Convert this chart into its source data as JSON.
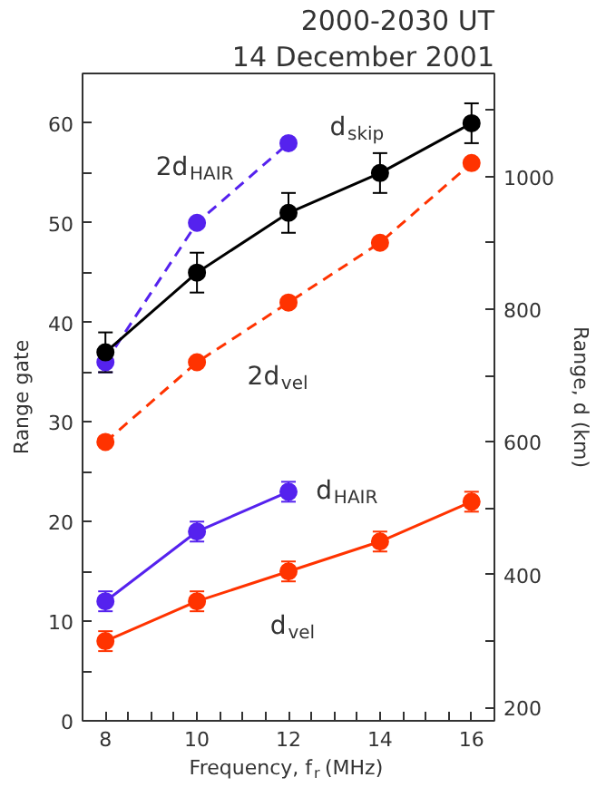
{
  "chart_data": {
    "type": "line",
    "title": "2000-2030 UT",
    "subtitle": "14 December 2001",
    "xlabel": "Frequency, f$_{r}$ (MHz)",
    "ylabel": "Range gate",
    "y2label": "Range, d (km)",
    "xlim": [
      7.5,
      16.5
    ],
    "xticks": [
      8,
      {
        "value": 8.5,
        "label": null
      },
      {
        "value": 9,
        "label": null
      },
      {
        "value": 9.5,
        "label": null
      },
      10,
      {
        "value": 10.5,
        "label": null
      },
      {
        "value": 11,
        "label": null
      },
      {
        "value": 11.5,
        "label": null
      },
      12,
      {
        "value": 12.5,
        "label": null
      },
      {
        "value": 13,
        "label": null
      },
      {
        "value": 13.5,
        "label": null
      },
      14,
      {
        "value": 14.5,
        "label": null
      },
      {
        "value": 15,
        "label": null
      },
      {
        "value": 15.5,
        "label": null
      },
      16
    ],
    "ylim": [
      0,
      65
    ],
    "yticks": [
      0,
      {
        "value": 5,
        "label": null
      },
      10,
      {
        "value": 15,
        "label": null
      },
      20,
      {
        "value": 25,
        "label": null
      },
      30,
      {
        "value": 35,
        "label": null
      },
      40,
      {
        "value": 45,
        "label": null
      },
      50,
      {
        "value": 55,
        "label": null
      },
      60
    ],
    "y2lim": [
      180,
      1155
    ],
    "y2ticks": [
      200,
      {
        "value": 300,
        "label": null
      },
      400,
      {
        "value": 500,
        "label": null
      },
      600,
      {
        "value": 700,
        "label": null
      },
      800,
      {
        "value": 900,
        "label": null
      },
      1000,
      {
        "value": 1100,
        "label": null
      }
    ],
    "marker": "circle",
    "grid": false,
    "series": [
      {
        "name": "2d$_{HAIR}$",
        "color": "#5522ee",
        "line_style": "dashed",
        "x": [
          8,
          10,
          12
        ],
        "values": [
          36,
          50,
          58
        ],
        "errors": [
          1,
          null,
          null
        ]
      },
      {
        "name": "d$_{skip}$",
        "color": "#000000",
        "line_style": "solid",
        "x": [
          8,
          10,
          12,
          14,
          16
        ],
        "values": [
          37,
          45,
          51,
          55,
          60
        ],
        "errors": [
          2,
          2,
          2,
          2,
          2
        ]
      },
      {
        "name": "2d$_{vel}$",
        "color": "#ff3300",
        "line_style": "dashed",
        "x": [
          8,
          10,
          12,
          14,
          16
        ],
        "values": [
          28,
          36,
          42,
          48,
          56
        ]
      },
      {
        "name": "d$_{HAIR}$",
        "color": "#5522ee",
        "line_style": "solid",
        "x": [
          8,
          10,
          12
        ],
        "values": [
          12,
          19,
          23
        ],
        "errors": [
          1,
          1,
          1
        ]
      },
      {
        "name": "d$_{vel}$",
        "color": "#ff3300",
        "line_style": "solid",
        "x": [
          8,
          10,
          12,
          14,
          16
        ],
        "values": [
          8,
          12,
          15,
          18,
          22
        ],
        "errors": [
          1,
          1,
          1,
          1,
          1
        ]
      }
    ]
  }
}
